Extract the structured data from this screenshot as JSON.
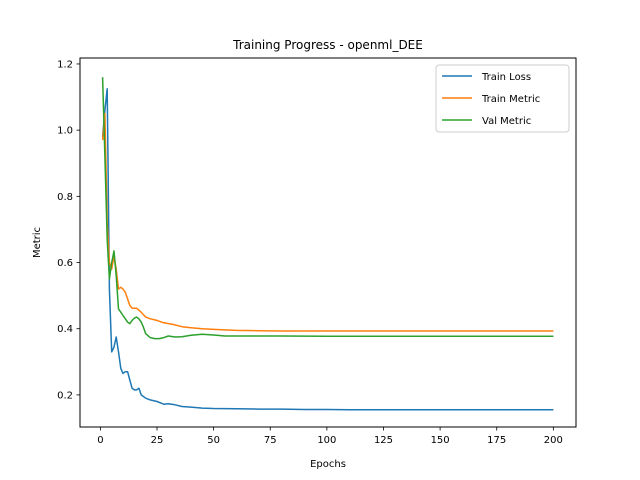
{
  "chart_data": {
    "type": "line",
    "title": "Training Progress - openml_DEE",
    "xlabel": "Epochs",
    "ylabel": "Metric",
    "xlim": [
      -9,
      210
    ],
    "ylim": [
      0.103,
      1.218
    ],
    "xticks": [
      0,
      25,
      50,
      75,
      100,
      125,
      150,
      175,
      200
    ],
    "yticks": [
      0.2,
      0.4,
      0.6,
      0.8,
      1.0,
      1.2
    ],
    "ytick_labels": [
      "0.2",
      "0.4",
      "0.6",
      "0.8",
      "1.0",
      "1.2"
    ],
    "grid": false,
    "legend_position": "top-right",
    "series": [
      {
        "name": "Train Loss",
        "color": "#1f77b4",
        "points": [
          [
            1,
            0.98
          ],
          [
            2,
            1.06
          ],
          [
            3,
            1.125
          ],
          [
            4,
            0.52
          ],
          [
            5,
            0.33
          ],
          [
            6,
            0.345
          ],
          [
            7,
            0.375
          ],
          [
            8,
            0.33
          ],
          [
            9,
            0.28
          ],
          [
            10,
            0.265
          ],
          [
            11,
            0.27
          ],
          [
            12,
            0.27
          ],
          [
            13,
            0.245
          ],
          [
            14,
            0.22
          ],
          [
            15,
            0.215
          ],
          [
            16,
            0.215
          ],
          [
            17,
            0.22
          ],
          [
            18,
            0.2
          ],
          [
            20,
            0.19
          ],
          [
            22,
            0.185
          ],
          [
            25,
            0.18
          ],
          [
            28,
            0.172
          ],
          [
            30,
            0.173
          ],
          [
            33,
            0.17
          ],
          [
            36,
            0.165
          ],
          [
            40,
            0.163
          ],
          [
            45,
            0.16
          ],
          [
            50,
            0.159
          ],
          [
            60,
            0.158
          ],
          [
            70,
            0.157
          ],
          [
            80,
            0.157
          ],
          [
            90,
            0.156
          ],
          [
            100,
            0.156
          ],
          [
            110,
            0.155
          ],
          [
            120,
            0.155
          ],
          [
            130,
            0.155
          ],
          [
            140,
            0.155
          ],
          [
            150,
            0.155
          ],
          [
            160,
            0.155
          ],
          [
            170,
            0.155
          ],
          [
            180,
            0.155
          ],
          [
            190,
            0.155
          ],
          [
            200,
            0.155
          ]
        ]
      },
      {
        "name": "Train Metric",
        "color": "#ff7f0e",
        "points": [
          [
            1,
            0.97
          ],
          [
            2,
            1.05
          ],
          [
            3,
            0.72
          ],
          [
            4,
            0.6
          ],
          [
            5,
            0.58
          ],
          [
            6,
            0.62
          ],
          [
            7,
            0.58
          ],
          [
            8,
            0.52
          ],
          [
            9,
            0.525
          ],
          [
            10,
            0.52
          ],
          [
            11,
            0.51
          ],
          [
            12,
            0.49
          ],
          [
            13,
            0.47
          ],
          [
            14,
            0.462
          ],
          [
            16,
            0.462
          ],
          [
            18,
            0.45
          ],
          [
            20,
            0.435
          ],
          [
            22,
            0.43
          ],
          [
            25,
            0.425
          ],
          [
            28,
            0.418
          ],
          [
            32,
            0.413
          ],
          [
            36,
            0.406
          ],
          [
            40,
            0.403
          ],
          [
            45,
            0.4
          ],
          [
            50,
            0.398
          ],
          [
            60,
            0.395
          ],
          [
            70,
            0.394
          ],
          [
            80,
            0.393
          ],
          [
            100,
            0.393
          ],
          [
            120,
            0.393
          ],
          [
            150,
            0.393
          ],
          [
            175,
            0.393
          ],
          [
            200,
            0.393
          ]
        ]
      },
      {
        "name": "Val Metric",
        "color": "#2ca02c",
        "points": [
          [
            1,
            1.16
          ],
          [
            2,
            0.92
          ],
          [
            3,
            0.67
          ],
          [
            4,
            0.55
          ],
          [
            5,
            0.6
          ],
          [
            6,
            0.635
          ],
          [
            7,
            0.56
          ],
          [
            8,
            0.46
          ],
          [
            9,
            0.45
          ],
          [
            10,
            0.44
          ],
          [
            11,
            0.43
          ],
          [
            12,
            0.42
          ],
          [
            13,
            0.415
          ],
          [
            14,
            0.425
          ],
          [
            15,
            0.432
          ],
          [
            16,
            0.435
          ],
          [
            17,
            0.43
          ],
          [
            18,
            0.42
          ],
          [
            19,
            0.405
          ],
          [
            20,
            0.385
          ],
          [
            22,
            0.373
          ],
          [
            24,
            0.37
          ],
          [
            26,
            0.37
          ],
          [
            28,
            0.373
          ],
          [
            30,
            0.378
          ],
          [
            33,
            0.375
          ],
          [
            36,
            0.376
          ],
          [
            40,
            0.38
          ],
          [
            45,
            0.383
          ],
          [
            50,
            0.381
          ],
          [
            55,
            0.378
          ],
          [
            60,
            0.378
          ],
          [
            80,
            0.378
          ],
          [
            100,
            0.377
          ],
          [
            150,
            0.377
          ],
          [
            200,
            0.377
          ]
        ]
      }
    ]
  }
}
